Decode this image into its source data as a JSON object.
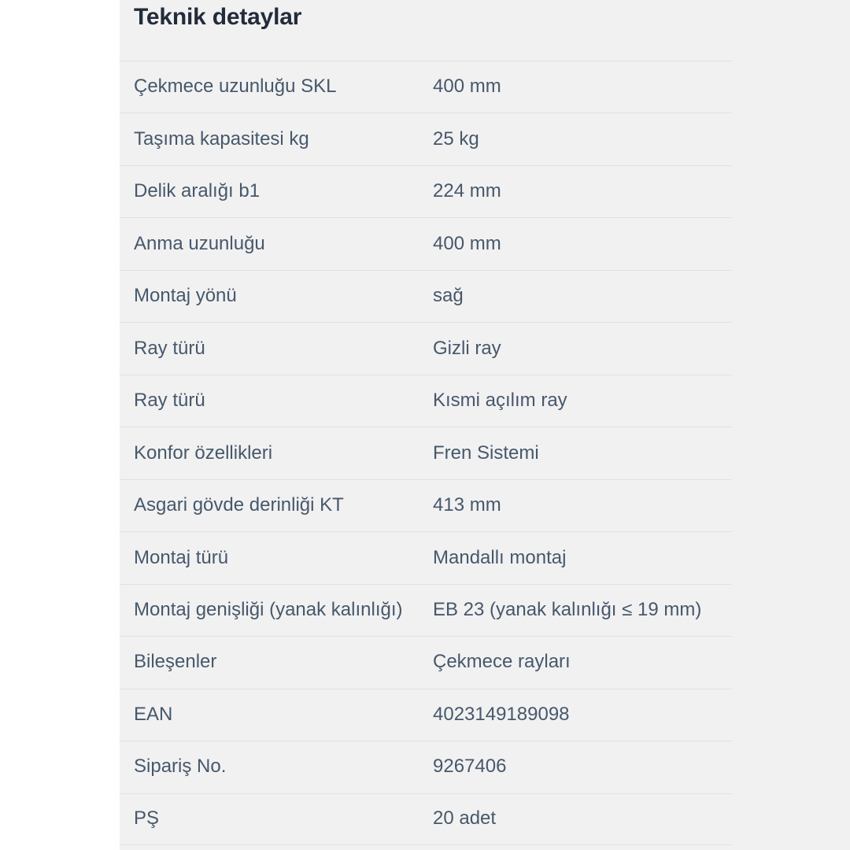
{
  "section": {
    "title": "Teknik detaylar"
  },
  "table": {
    "rows": [
      {
        "label": "Çekmece uzunluğu SKL",
        "value": "400 mm"
      },
      {
        "label": "Taşıma kapasitesi kg",
        "value": "25 kg"
      },
      {
        "label": "Delik aralığı b1",
        "value": "224 mm"
      },
      {
        "label": "Anma uzunluğu",
        "value": "400 mm"
      },
      {
        "label": "Montaj yönü",
        "value": "sağ"
      },
      {
        "label": "Ray türü",
        "value": "Gizli ray"
      },
      {
        "label": "Ray türü",
        "value": "Kısmi açılım ray"
      },
      {
        "label": "Konfor özellikleri",
        "value": "Fren Sistemi"
      },
      {
        "label": "Asgari gövde derinliği KT",
        "value": "413 mm"
      },
      {
        "label": "Montaj türü",
        "value": "Mandallı montaj"
      },
      {
        "label": "Montaj genişliği (yanak kalınlığı)",
        "value": "EB 23 (yanak kalınlığı ≤ 19 mm)"
      },
      {
        "label": "Bileşenler",
        "value": "Çekmece rayları"
      },
      {
        "label": "EAN",
        "value": "4023149189098"
      },
      {
        "label": "Sipariş No.",
        "value": "9267406"
      },
      {
        "label": "PŞ",
        "value": "20 adet"
      }
    ]
  },
  "colors": {
    "page_bg": "#ffffff",
    "panel_bg": "#f1f1f2",
    "divider": "#e0e1e1",
    "title_text": "#222c3a",
    "body_text": "#47586a"
  }
}
